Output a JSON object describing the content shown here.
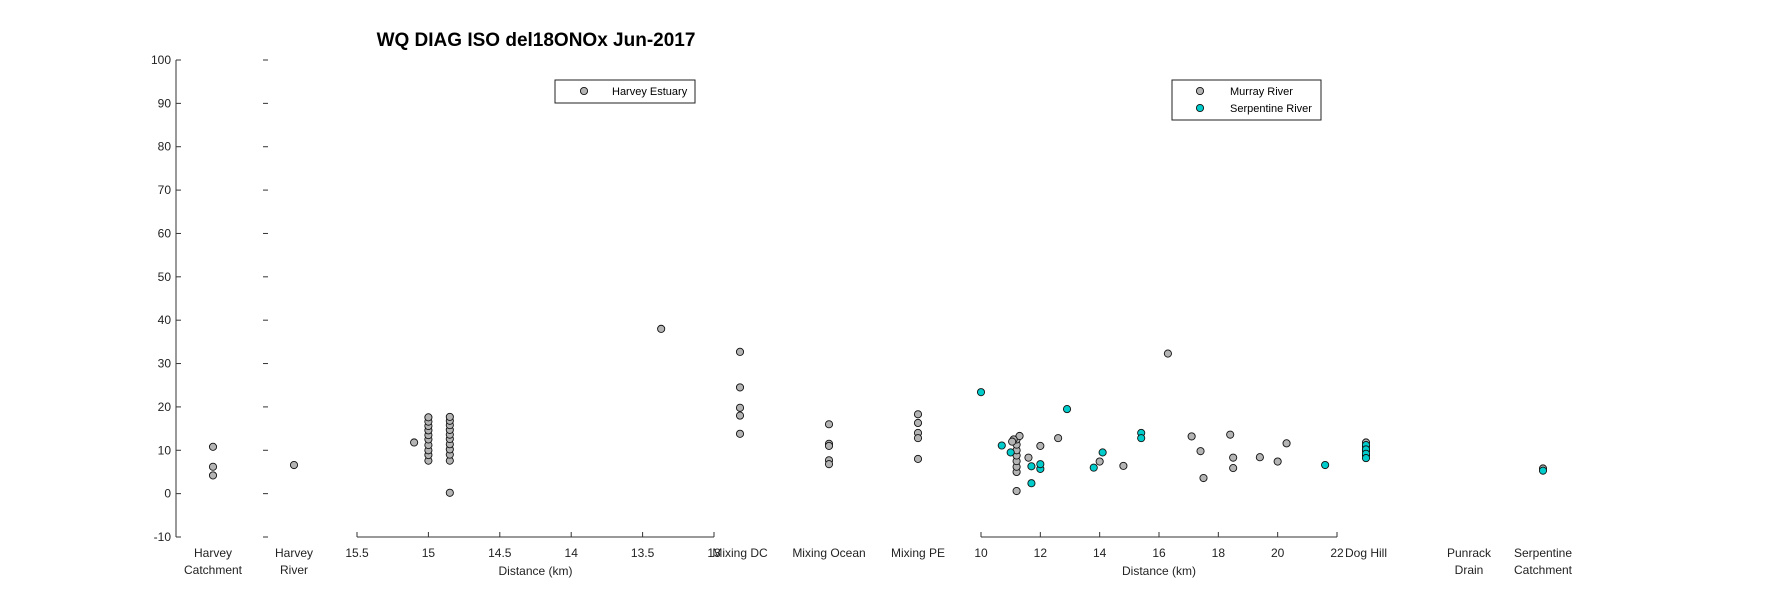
{
  "chart_data": {
    "type": "scatter",
    "title": "WQ DIAG ISO del18ONOx Jun-2017",
    "ylim": [
      -10,
      100
    ],
    "yticks": [
      -10,
      0,
      10,
      20,
      30,
      40,
      50,
      60,
      70,
      80,
      90,
      100
    ],
    "harvey_catchment": {
      "label": [
        "Harvey",
        "Catchment"
      ],
      "values": [
        10.8,
        6.2,
        4.2
      ]
    },
    "harvey_river": {
      "label": [
        "Harvey",
        "River"
      ],
      "values": [
        6.6
      ]
    },
    "harvey_estuary": {
      "xlabel": "Distance (km)",
      "xlim": [
        15.5,
        13
      ],
      "xticks": [
        "15.5",
        "15",
        "14.5",
        "14",
        "13.5",
        "13"
      ],
      "legend": [
        "Harvey Estuary"
      ],
      "series": [
        {
          "name": "Harvey Estuary",
          "color": "#b4b4b4",
          "points": [
            [
              15.1,
              11.8
            ],
            [
              13.37,
              38.0
            ],
            [
              15.0,
              7.6
            ],
            [
              15.0,
              8.9
            ],
            [
              15.0,
              10.0
            ],
            [
              15.0,
              11.2
            ],
            [
              15.0,
              12.5
            ],
            [
              15.0,
              13.5
            ],
            [
              15.0,
              14.6
            ],
            [
              15.0,
              15.6
            ],
            [
              15.0,
              16.6
            ],
            [
              15.0,
              17.6
            ],
            [
              14.85,
              0.2
            ],
            [
              14.85,
              7.6
            ],
            [
              14.85,
              9.0
            ],
            [
              14.85,
              10.2
            ],
            [
              14.85,
              11.4
            ],
            [
              14.85,
              12.6
            ],
            [
              14.85,
              13.6
            ],
            [
              14.85,
              14.7
            ],
            [
              14.85,
              15.8
            ],
            [
              14.85,
              16.8
            ],
            [
              14.85,
              17.7
            ]
          ]
        }
      ]
    },
    "mixing_dc": {
      "label": "Mixing DC",
      "values": [
        32.7,
        24.5,
        19.8,
        18.0,
        13.8
      ]
    },
    "mixing_ocean": {
      "label": "Mixing Ocean",
      "values": [
        16.0,
        11.5,
        11.0,
        7.7,
        6.8
      ]
    },
    "mixing_pe": {
      "label": "Mixing PE",
      "values": [
        18.3,
        16.3,
        14.0,
        12.8,
        8.0
      ]
    },
    "murray_serpentine": {
      "xlabel": "Distance (km)",
      "xlim": [
        10,
        22
      ],
      "xticks": [
        "10",
        "12",
        "14",
        "16",
        "18",
        "20",
        "22"
      ],
      "legend": [
        "Murray River",
        "Serpentine River"
      ],
      "series": [
        {
          "name": "Murray River",
          "color": "#b4b4b4",
          "points": [
            [
              11.2,
              0.6
            ],
            [
              11.2,
              5.0
            ],
            [
              11.2,
              6.2
            ],
            [
              11.2,
              7.5
            ],
            [
              11.2,
              8.8
            ],
            [
              11.2,
              10.0
            ],
            [
              11.2,
              11.3
            ],
            [
              11.2,
              12.5
            ],
            [
              11.3,
              13.3
            ],
            [
              11.1,
              12.5
            ],
            [
              11.05,
              12.0
            ],
            [
              11.6,
              8.3
            ],
            [
              12.0,
              11.0
            ],
            [
              12.6,
              12.8
            ],
            [
              14.0,
              7.4
            ],
            [
              14.8,
              6.4
            ],
            [
              16.3,
              32.3
            ],
            [
              17.1,
              13.2
            ],
            [
              17.4,
              9.8
            ],
            [
              17.5,
              3.6
            ],
            [
              18.4,
              13.6
            ],
            [
              18.5,
              8.3
            ],
            [
              18.5,
              5.9
            ],
            [
              19.4,
              8.4
            ],
            [
              20.0,
              7.4
            ],
            [
              20.3,
              11.6
            ]
          ]
        },
        {
          "name": "Serpentine River",
          "color": "#00cccc",
          "points": [
            [
              10.0,
              23.4
            ],
            [
              10.7,
              11.1
            ],
            [
              11.0,
              9.5
            ],
            [
              11.7,
              6.3
            ],
            [
              11.7,
              2.4
            ],
            [
              12.0,
              5.7
            ],
            [
              12.0,
              6.8
            ],
            [
              12.9,
              19.5
            ],
            [
              13.8,
              6.0
            ],
            [
              14.1,
              9.5
            ],
            [
              15.4,
              14.0
            ],
            [
              15.4,
              12.8
            ],
            [
              21.6,
              6.6
            ]
          ]
        }
      ]
    },
    "dog_hill": {
      "label": "Dog Hill",
      "grey": [
        11.8,
        10.8,
        9.8,
        8.8
      ],
      "cyan": [
        11.2,
        10.2,
        9.2,
        8.2
      ]
    },
    "punrack_drain": {
      "label": [
        "Punrack",
        "Drain"
      ],
      "values": []
    },
    "serpentine_catchment": {
      "label": [
        "Serpentine",
        "Catchment"
      ],
      "grey": [
        5.8
      ],
      "cyan": [
        5.3
      ]
    }
  }
}
